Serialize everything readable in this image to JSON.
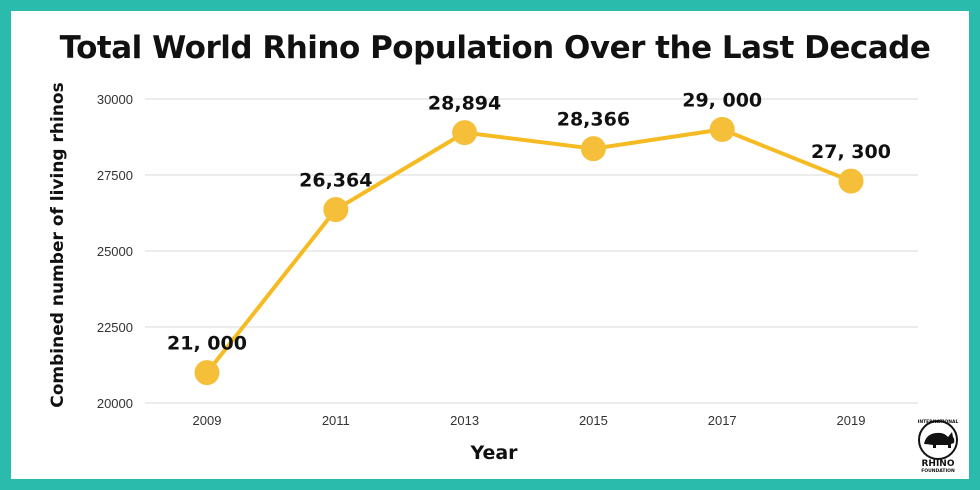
{
  "chart_data": {
    "type": "line",
    "title": "Total World Rhino Population Over the Last Decade",
    "xlabel": "Year",
    "ylabel": "Combined number of  living rhinos",
    "categories": [
      "2009",
      "2011",
      "2013",
      "2015",
      "2017",
      "2019"
    ],
    "series": [
      {
        "values": [
          21000,
          26364,
          28894,
          28366,
          29000,
          27300
        ],
        "labels": [
          "21, 000",
          "26,364",
          "28,894",
          "28,366",
          "29, 000",
          "27, 300"
        ],
        "color": "#f6bb22"
      }
    ],
    "ylim": [
      20000,
      30000
    ],
    "yticks": [
      "30000",
      "27500",
      "25000",
      "22500",
      "20000"
    ],
    "grid": true,
    "legend": "none"
  },
  "colors": {
    "frame": "#2bbbad",
    "line": "#f6bb22",
    "marker": "#f5bf3a"
  },
  "logo": {
    "name": "rhino-logo",
    "lines": [
      "INTERNATIONAL",
      "RHINO",
      "FOUNDATION"
    ]
  }
}
